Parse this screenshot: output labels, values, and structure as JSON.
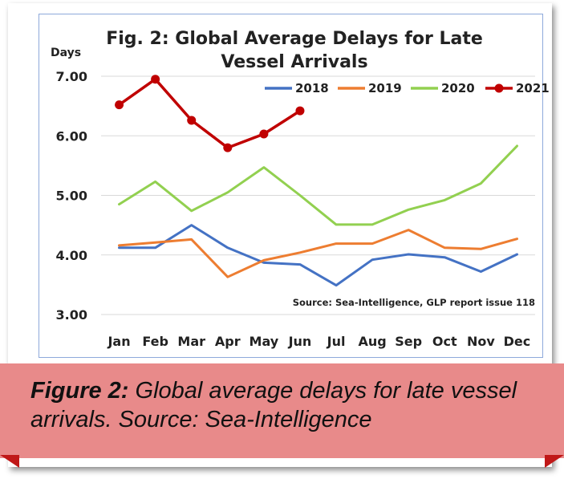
{
  "colors": {
    "series_2018": "#4472c4",
    "series_2019": "#ed7d31",
    "series_2020": "#92d050",
    "series_2021": "#c00000",
    "caption_band": "#e88a8a",
    "caption_fold": "#c01818"
  },
  "chart_data": {
    "type": "line",
    "title": "Fig. 2: Global Average Delays for Late Vessel Arrivals",
    "title_lines": [
      "Fig. 2: Global Average Delays for Late",
      "Vessel Arrivals"
    ],
    "ylabel": "Days",
    "ylim": [
      3.0,
      7.0
    ],
    "yticks": [
      "3.00",
      "4.00",
      "5.00",
      "6.00",
      "7.00"
    ],
    "grid": true,
    "legend_position": "top-right",
    "categories": [
      "Jan",
      "Feb",
      "Mar",
      "Apr",
      "May",
      "Jun",
      "Jul",
      "Aug",
      "Sep",
      "Oct",
      "Nov",
      "Dec"
    ],
    "series": [
      {
        "name": "2018",
        "values": [
          4.12,
          4.12,
          4.5,
          4.12,
          3.87,
          3.84,
          3.49,
          3.92,
          4.01,
          3.96,
          3.72,
          4.01
        ]
      },
      {
        "name": "2019",
        "values": [
          4.16,
          4.21,
          4.26,
          3.63,
          3.91,
          4.04,
          4.19,
          4.19,
          4.42,
          4.12,
          4.1,
          4.27
        ]
      },
      {
        "name": "2020",
        "values": [
          4.85,
          5.23,
          4.74,
          5.05,
          5.47,
          5.0,
          4.51,
          4.51,
          4.76,
          4.92,
          5.2,
          5.83
        ]
      },
      {
        "name": "2021",
        "values": [
          6.52,
          6.95,
          6.26,
          5.8,
          6.03,
          6.42,
          null,
          null,
          null,
          null,
          null,
          null
        ]
      }
    ],
    "annotation": "Source: Sea-Intelligence, GLP report issue 118"
  },
  "caption": {
    "label": "Figure 2:",
    "text": " Global average delays for late vessel arrivals. Source: Sea-Intelligence"
  }
}
